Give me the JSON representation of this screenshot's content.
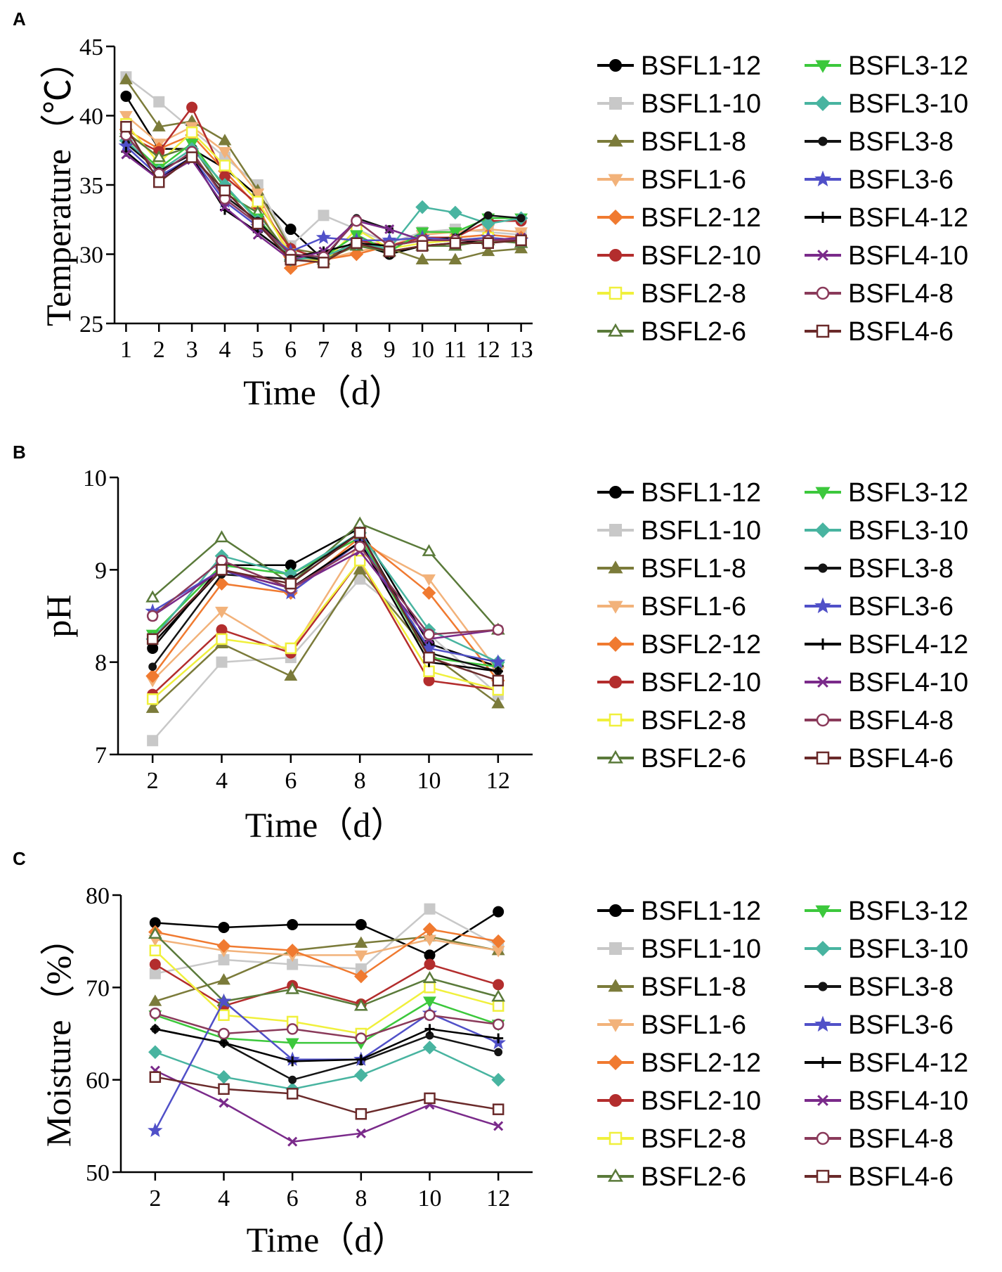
{
  "figure": {
    "panels": [
      "A",
      "B",
      "C"
    ]
  },
  "chart_data": [
    {
      "panel": "A",
      "type": "line",
      "xlabel": "Time（d）",
      "ylabel": "Temperature（℃）",
      "x": [
        1,
        2,
        3,
        4,
        5,
        6,
        7,
        8,
        9,
        10,
        11,
        12,
        13
      ],
      "xticks": [
        1,
        2,
        3,
        4,
        5,
        6,
        7,
        8,
        9,
        10,
        11,
        12,
        13
      ],
      "ylim": [
        25,
        45
      ],
      "yticks": [
        25,
        30,
        35,
        40,
        45
      ],
      "series": [
        {
          "name": "BSFL1-12",
          "color": "#000000",
          "marker": "circle",
          "values": [
            41.4,
            37.6,
            37.6,
            36.2,
            34.2,
            31.8,
            29.6,
            30.8,
            30.0,
            30.6,
            30.8,
            31.0,
            31.0
          ]
        },
        {
          "name": "BSFL1-10",
          "color": "#c8c8c8",
          "marker": "square",
          "values": [
            42.8,
            41.0,
            39.0,
            37.0,
            35.0,
            30.6,
            32.8,
            31.8,
            30.8,
            31.6,
            31.8,
            31.6,
            31.4
          ]
        },
        {
          "name": "BSFL1-8",
          "color": "#7b7b3a",
          "marker": "triangle-up",
          "values": [
            42.6,
            39.2,
            39.6,
            38.2,
            34.6,
            30.4,
            30.0,
            30.6,
            30.4,
            29.6,
            29.6,
            30.2,
            30.4
          ]
        },
        {
          "name": "BSFL1-6",
          "color": "#f2b27a",
          "marker": "triangle-down",
          "values": [
            40.0,
            38.0,
            39.2,
            37.4,
            34.4,
            29.6,
            29.6,
            30.2,
            30.6,
            31.4,
            31.6,
            31.8,
            31.6
          ]
        },
        {
          "name": "BSFL2-12",
          "color": "#f07a30",
          "marker": "diamond",
          "values": [
            39.0,
            37.6,
            38.6,
            36.0,
            33.4,
            29.0,
            29.6,
            30.0,
            30.6,
            31.2,
            31.2,
            31.4,
            31.2
          ]
        },
        {
          "name": "BSFL2-10",
          "color": "#b32d2d",
          "marker": "circle",
          "values": [
            38.6,
            37.4,
            40.6,
            35.6,
            33.6,
            30.4,
            29.6,
            31.0,
            30.6,
            31.2,
            31.2,
            32.4,
            32.4
          ]
        },
        {
          "name": "BSFL2-8",
          "color": "#f0f03c",
          "marker": "square-open",
          "values": [
            39.4,
            36.6,
            38.8,
            36.4,
            33.8,
            30.0,
            29.4,
            31.8,
            30.4,
            30.8,
            31.0,
            31.2,
            31.0
          ]
        },
        {
          "name": "BSFL2-6",
          "color": "#5a7a3a",
          "marker": "triangle-open",
          "values": [
            38.8,
            37.0,
            37.8,
            34.4,
            33.0,
            29.8,
            29.6,
            30.6,
            30.2,
            30.6,
            30.6,
            31.0,
            30.8
          ]
        },
        {
          "name": "BSFL3-12",
          "color": "#3cc83c",
          "marker": "triangle-down",
          "values": [
            38.4,
            36.2,
            38.0,
            34.8,
            32.6,
            29.8,
            29.8,
            31.4,
            30.2,
            31.6,
            31.6,
            32.6,
            32.6
          ]
        },
        {
          "name": "BSFL3-10",
          "color": "#48b4a0",
          "marker": "diamond",
          "values": [
            38.2,
            36.0,
            37.6,
            35.0,
            32.4,
            29.6,
            29.8,
            30.8,
            30.4,
            33.4,
            33.0,
            32.2,
            32.6
          ]
        },
        {
          "name": "BSFL3-8",
          "color": "#141414",
          "marker": "small-circle",
          "values": [
            38.0,
            36.0,
            37.2,
            34.2,
            32.4,
            30.0,
            29.6,
            32.6,
            31.8,
            31.0,
            31.2,
            32.8,
            32.6
          ]
        },
        {
          "name": "BSFL3-6",
          "color": "#5050c8",
          "marker": "star",
          "values": [
            37.8,
            35.6,
            37.0,
            33.8,
            32.0,
            30.2,
            31.2,
            31.0,
            31.0,
            31.2,
            31.0,
            31.2,
            31.0
          ]
        },
        {
          "name": "BSFL4-12",
          "color": "#000000",
          "marker": "plus",
          "values": [
            37.4,
            35.4,
            37.0,
            33.2,
            31.6,
            29.8,
            30.2,
            30.8,
            30.6,
            31.0,
            31.0,
            31.0,
            31.0
          ]
        },
        {
          "name": "BSFL4-10",
          "color": "#7a2a8a",
          "marker": "x",
          "values": [
            37.2,
            35.4,
            36.8,
            33.4,
            31.4,
            29.6,
            30.2,
            32.4,
            31.8,
            31.0,
            31.0,
            31.0,
            31.2
          ]
        },
        {
          "name": "BSFL4-8",
          "color": "#8a3a5a",
          "marker": "circle-open",
          "values": [
            38.6,
            35.8,
            37.4,
            34.0,
            32.2,
            30.0,
            29.8,
            32.4,
            30.6,
            31.0,
            31.0,
            31.0,
            31.0
          ]
        },
        {
          "name": "BSFL4-6",
          "color": "#6a2a2a",
          "marker": "square-open",
          "values": [
            39.2,
            35.2,
            37.0,
            34.6,
            32.2,
            29.6,
            29.4,
            30.8,
            30.2,
            30.6,
            30.8,
            30.8,
            31.0
          ]
        }
      ]
    },
    {
      "panel": "B",
      "type": "line",
      "xlabel": "Time（d）",
      "ylabel": "pH",
      "x": [
        2,
        4,
        6,
        8,
        10,
        12
      ],
      "xticks": [
        2,
        4,
        6,
        8,
        10,
        12
      ],
      "xlim": [
        1,
        13
      ],
      "ylim": [
        7,
        10
      ],
      "yticks": [
        7,
        8,
        9,
        10
      ],
      "series": [
        {
          "name": "BSFL1-12",
          "color": "#000000",
          "marker": "circle",
          "values": [
            8.15,
            9.05,
            9.05,
            9.45,
            8.2,
            7.95
          ]
        },
        {
          "name": "BSFL1-10",
          "color": "#c8c8c8",
          "marker": "square",
          "values": [
            7.15,
            8.0,
            8.05,
            8.9,
            8.3,
            7.65
          ]
        },
        {
          "name": "BSFL1-8",
          "color": "#7b7b3a",
          "marker": "triangle-up",
          "values": [
            7.5,
            8.2,
            7.85,
            9.0,
            8.1,
            7.55
          ]
        },
        {
          "name": "BSFL1-6",
          "color": "#f2b27a",
          "marker": "triangle-down",
          "values": [
            7.8,
            8.55,
            8.1,
            9.3,
            8.9,
            7.9
          ]
        },
        {
          "name": "BSFL2-12",
          "color": "#f07a30",
          "marker": "diamond",
          "values": [
            7.85,
            8.85,
            8.75,
            9.35,
            8.75,
            7.8
          ]
        },
        {
          "name": "BSFL2-10",
          "color": "#b32d2d",
          "marker": "circle",
          "values": [
            7.65,
            8.35,
            8.1,
            9.1,
            7.8,
            7.7
          ]
        },
        {
          "name": "BSFL2-8",
          "color": "#f0f03c",
          "marker": "square-open",
          "values": [
            7.6,
            8.25,
            8.15,
            9.1,
            7.9,
            7.7
          ]
        },
        {
          "name": "BSFL2-6",
          "color": "#5a7a3a",
          "marker": "triangle-open",
          "values": [
            8.7,
            9.35,
            8.85,
            9.5,
            9.2,
            8.35
          ]
        },
        {
          "name": "BSFL3-12",
          "color": "#3cc83c",
          "marker": "triangle-down",
          "values": [
            8.3,
            9.05,
            8.95,
            9.35,
            8.05,
            7.95
          ]
        },
        {
          "name": "BSFL3-10",
          "color": "#48b4a0",
          "marker": "diamond",
          "values": [
            8.25,
            9.15,
            8.95,
            9.4,
            8.35,
            8.0
          ]
        },
        {
          "name": "BSFL3-8",
          "color": "#141414",
          "marker": "small-circle",
          "values": [
            7.95,
            8.95,
            8.9,
            9.4,
            8.1,
            7.9
          ]
        },
        {
          "name": "BSFL3-6",
          "color": "#5050c8",
          "marker": "star",
          "values": [
            8.55,
            9.0,
            8.75,
            9.3,
            8.15,
            8.0
          ]
        },
        {
          "name": "BSFL4-12",
          "color": "#000000",
          "marker": "plus",
          "values": [
            8.2,
            9.0,
            8.8,
            9.3,
            8.0,
            7.9
          ]
        },
        {
          "name": "BSFL4-10",
          "color": "#7a2a8a",
          "marker": "x",
          "values": [
            8.5,
            9.0,
            8.8,
            9.2,
            8.25,
            8.35
          ]
        },
        {
          "name": "BSFL4-8",
          "color": "#8a3a5a",
          "marker": "circle-open",
          "values": [
            8.5,
            9.1,
            8.8,
            9.25,
            8.3,
            8.35
          ]
        },
        {
          "name": "BSFL4-6",
          "color": "#6a2a2a",
          "marker": "square-open",
          "values": [
            8.25,
            9.0,
            8.85,
            9.4,
            8.05,
            7.8
          ]
        }
      ]
    },
    {
      "panel": "C",
      "type": "line",
      "xlabel": "Time（d）",
      "ylabel": "Moisture（%）",
      "x": [
        2,
        4,
        6,
        8,
        10,
        12
      ],
      "xticks": [
        2,
        4,
        6,
        8,
        10,
        12
      ],
      "xlim": [
        1,
        13
      ],
      "ylim": [
        50,
        80
      ],
      "yticks": [
        50,
        60,
        70,
        80
      ],
      "series": [
        {
          "name": "BSFL1-12",
          "color": "#000000",
          "marker": "circle",
          "values": [
            77.0,
            76.5,
            76.8,
            76.8,
            73.5,
            78.2
          ]
        },
        {
          "name": "BSFL1-10",
          "color": "#c8c8c8",
          "marker": "square",
          "values": [
            71.5,
            73.0,
            72.5,
            72.0,
            78.5,
            74.5
          ]
        },
        {
          "name": "BSFL1-8",
          "color": "#7b7b3a",
          "marker": "triangle-up",
          "values": [
            68.5,
            70.8,
            74.0,
            74.8,
            75.5,
            74.0
          ]
        },
        {
          "name": "BSFL1-6",
          "color": "#f2b27a",
          "marker": "triangle-down",
          "values": [
            75.2,
            74.0,
            73.5,
            73.5,
            75.2,
            74.0
          ]
        },
        {
          "name": "BSFL2-12",
          "color": "#f07a30",
          "marker": "diamond",
          "values": [
            76.0,
            74.5,
            74.0,
            71.2,
            76.3,
            75.0
          ]
        },
        {
          "name": "BSFL2-10",
          "color": "#b32d2d",
          "marker": "circle",
          "values": [
            72.5,
            68.0,
            70.2,
            68.2,
            72.5,
            70.3
          ]
        },
        {
          "name": "BSFL2-8",
          "color": "#f0f03c",
          "marker": "square-open",
          "values": [
            74.0,
            67.0,
            66.3,
            65.0,
            70.0,
            68.0
          ]
        },
        {
          "name": "BSFL2-6",
          "color": "#5a7a3a",
          "marker": "triangle-open",
          "values": [
            75.8,
            68.5,
            69.8,
            68.0,
            71.0,
            69.0
          ]
        },
        {
          "name": "BSFL3-12",
          "color": "#3cc83c",
          "marker": "triangle-down",
          "values": [
            67.0,
            64.5,
            64.0,
            64.0,
            68.5,
            66.0
          ]
        },
        {
          "name": "BSFL3-10",
          "color": "#48b4a0",
          "marker": "diamond",
          "values": [
            63.0,
            60.3,
            59.0,
            60.5,
            63.5,
            60.0
          ]
        },
        {
          "name": "BSFL3-8",
          "color": "#141414",
          "marker": "small-circle",
          "values": [
            65.5,
            64.0,
            60.0,
            62.0,
            64.8,
            63.0
          ]
        },
        {
          "name": "BSFL3-6",
          "color": "#5050c8",
          "marker": "star",
          "values": [
            54.5,
            68.5,
            62.2,
            62.2,
            67.2,
            64.0
          ]
        },
        {
          "name": "BSFL4-12",
          "color": "#000000",
          "marker": "plus",
          "values": [
            65.5,
            64.0,
            62.0,
            62.2,
            65.5,
            64.5
          ]
        },
        {
          "name": "BSFL4-10",
          "color": "#7a2a8a",
          "marker": "x",
          "values": [
            61.0,
            57.5,
            53.3,
            54.2,
            57.3,
            55.0
          ]
        },
        {
          "name": "BSFL4-8",
          "color": "#8a3a5a",
          "marker": "circle-open",
          "values": [
            67.2,
            65.0,
            65.5,
            64.5,
            67.0,
            66.0
          ]
        },
        {
          "name": "BSFL4-6",
          "color": "#6a2a2a",
          "marker": "square-open",
          "values": [
            60.3,
            59.0,
            58.5,
            56.3,
            58.0,
            56.8
          ]
        }
      ]
    }
  ]
}
